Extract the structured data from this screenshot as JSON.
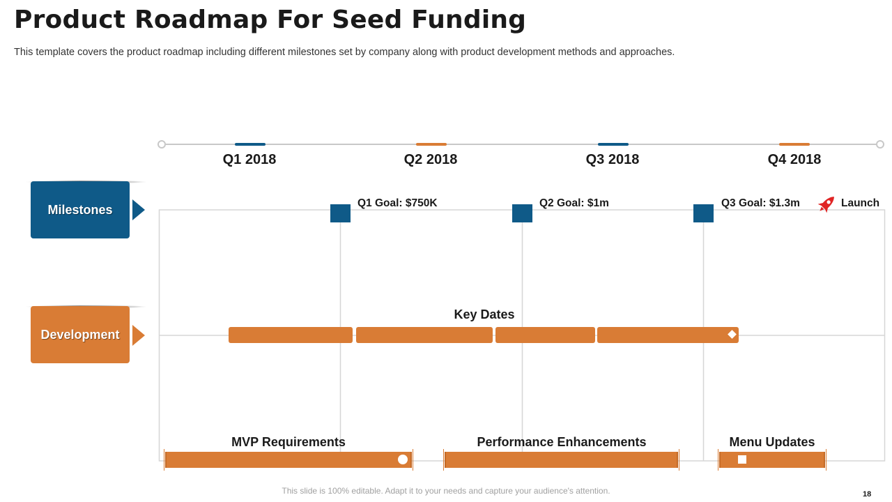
{
  "header": {
    "title": "Product Roadmap For Seed Funding",
    "subtitle": "This template covers the product roadmap including different milestones set by company along with product development methods and approaches."
  },
  "quarters": [
    "Q1 2018",
    "Q2 2018",
    "Q3 2018",
    "Q4 2018"
  ],
  "rows": {
    "milestones": "Milestones",
    "development": "Development"
  },
  "goals": [
    {
      "label": "Q1 Goal: $750K"
    },
    {
      "label": "Q2 Goal: $1m"
    },
    {
      "label": "Q3 Goal: $1.3m"
    }
  ],
  "launch": {
    "label": "Launch",
    "icon": "rocket-icon"
  },
  "key_dates": {
    "label": "Key Dates"
  },
  "dev_bars": {
    "mvp": "MVP Requirements",
    "performance": "Performance Enhancements",
    "menu": "Menu Updates"
  },
  "colors": {
    "blue": "#0f5a88",
    "orange": "#d97c35",
    "rocket": "#e02424"
  },
  "footer": {
    "note": "This slide is 100% editable. Adapt it to your needs and capture your audience's attention.",
    "page": "18"
  }
}
